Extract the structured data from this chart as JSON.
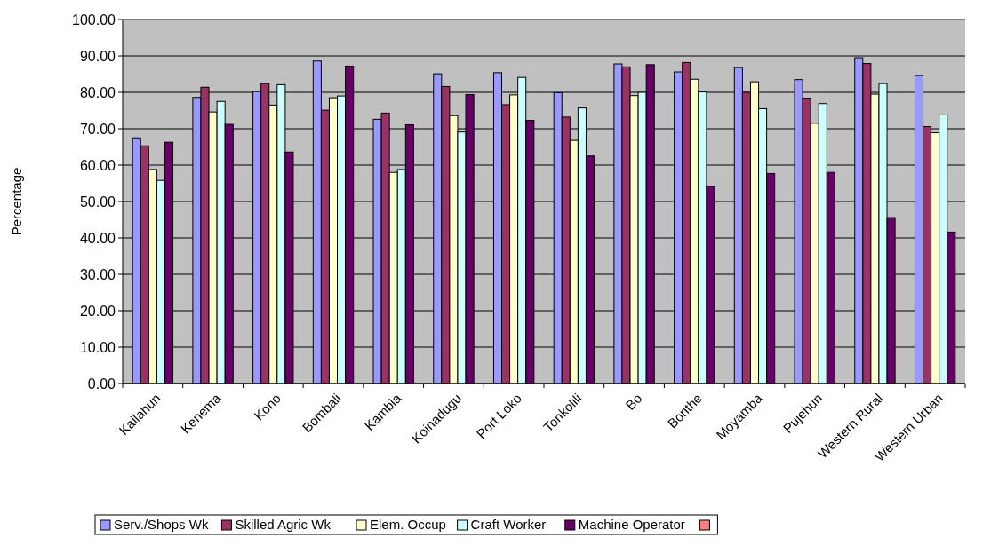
{
  "chart_data": {
    "type": "bar",
    "ylabel": "Percentage",
    "categories": [
      "Kailahun",
      "Kenema",
      "Kono",
      "Bombali",
      "Kambia",
      "Koinadugu",
      "Port Loko",
      "Tonkolili",
      "Bo",
      "Bonthe",
      "Moyamba",
      "Pujehun",
      "Western Rural",
      "Western Urban"
    ],
    "series": [
      {
        "name": "Serv./Shops Wk",
        "color": "#9999ff",
        "values": [
          67.5,
          78.6,
          80.2,
          88.6,
          72.6,
          85.1,
          85.4,
          79.9,
          87.8,
          85.6,
          86.8,
          83.5,
          89.5,
          84.6
        ]
      },
      {
        "name": "Skilled Agric Wk",
        "color": "#993366",
        "values": [
          65.3,
          81.4,
          82.4,
          75.1,
          74.3,
          81.6,
          76.6,
          73.2,
          87.0,
          88.2,
          80.0,
          78.4,
          87.9,
          70.6
        ]
      },
      {
        "name": "Elem. Occup",
        "color": "#ffffcc",
        "values": [
          58.8,
          74.6,
          76.5,
          78.5,
          58.0,
          73.6,
          79.3,
          66.8,
          79.1,
          83.6,
          82.9,
          71.5,
          79.5,
          68.9
        ]
      },
      {
        "name": "Craft Worker",
        "color": "#ccffff",
        "values": [
          55.8,
          77.5,
          82.1,
          79.0,
          58.8,
          69.1,
          84.1,
          75.7,
          80.0,
          80.1,
          75.5,
          76.9,
          82.4,
          73.8
        ]
      },
      {
        "name": "Machine Operator",
        "color": "#660066",
        "values": [
          66.3,
          71.2,
          63.6,
          87.2,
          71.1,
          79.4,
          72.3,
          62.5,
          87.6,
          54.2,
          57.7,
          58.0,
          45.6,
          41.6
        ]
      },
      {
        "color": "#ff8080",
        "values": [
          null,
          null,
          null,
          null,
          null,
          null,
          null,
          null,
          null,
          null,
          null,
          null,
          null,
          null
        ]
      }
    ],
    "ylim": [
      0,
      100
    ],
    "yticks": [
      {
        "value": 0,
        "label": "0.00"
      },
      {
        "value": 10,
        "label": "10.00"
      },
      {
        "value": 20,
        "label": "20.00"
      },
      {
        "value": 30,
        "label": "30.00"
      },
      {
        "value": 40,
        "label": "40.00"
      },
      {
        "value": 50,
        "label": "50.00"
      },
      {
        "value": 60,
        "label": "60.00"
      },
      {
        "value": 70,
        "label": "70.00"
      },
      {
        "value": 80,
        "label": "80.00"
      },
      {
        "value": 90,
        "label": "90.00"
      },
      {
        "value": 100,
        "label": "100.00"
      }
    ],
    "grid": "y",
    "legend": "bottom"
  }
}
